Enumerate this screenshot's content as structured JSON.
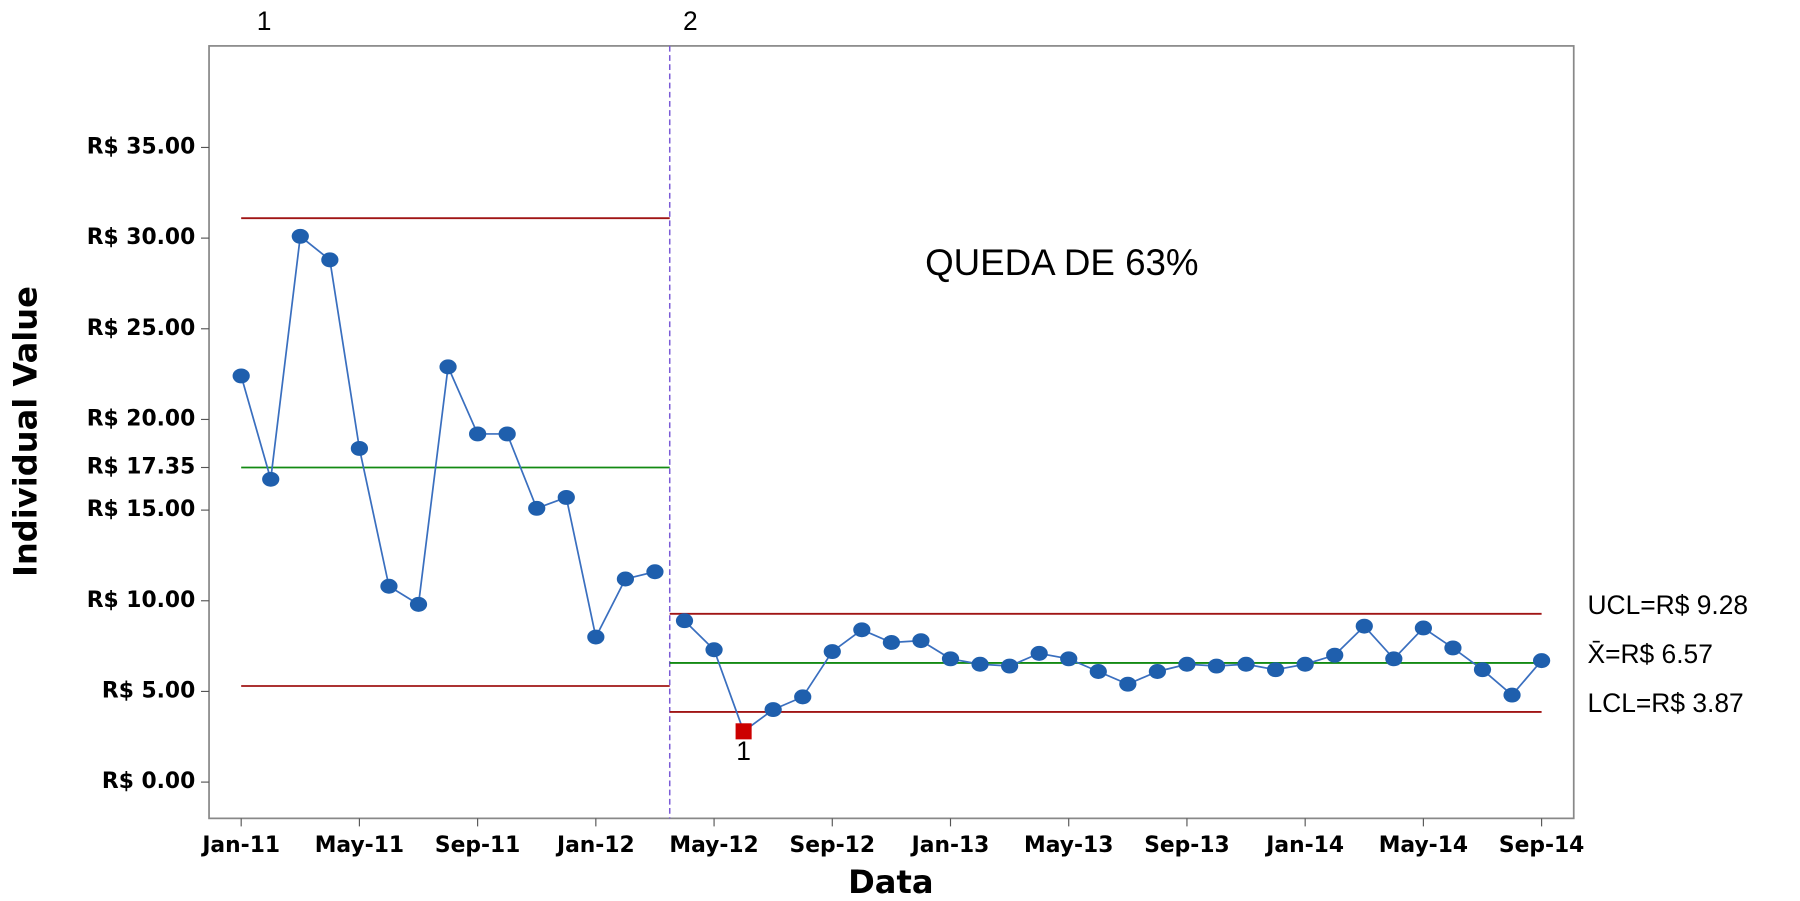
{
  "chart_data": {
    "type": "control",
    "annotation": "QUEDA DE 63%",
    "x_label": "Data",
    "y_label": "Individual Value",
    "categories": [
      "Jan-11",
      null,
      null,
      null,
      "May-11",
      null,
      null,
      null,
      "Sep-11",
      null,
      null,
      null,
      "Jan-12",
      null,
      null,
      null,
      "May-12",
      null,
      null,
      null,
      "Sep-12",
      null,
      null,
      null,
      "Jan-13",
      null,
      null,
      null,
      "May-13",
      null,
      null,
      null,
      "Sep-13",
      null,
      null,
      null,
      "Jan-14",
      null,
      null,
      null,
      "May-14",
      null,
      null,
      null,
      "Sep-14"
    ],
    "ylim": [
      -2,
      40.6
    ],
    "yticks": [
      {
        "value": 0,
        "label": "R$ 0.00"
      },
      {
        "value": 5,
        "label": "R$ 5.00"
      },
      {
        "value": 10,
        "label": "R$ 10.00"
      },
      {
        "value": 15,
        "label": "R$ 15.00"
      },
      {
        "value": 17.35,
        "label": "R$ 17.35"
      },
      {
        "value": 20,
        "label": "R$ 20.00"
      },
      {
        "value": 25,
        "label": "R$ 25.00"
      },
      {
        "value": 30,
        "label": "R$ 30.00"
      },
      {
        "value": 35,
        "label": "R$ 35.00"
      }
    ],
    "point_color": "#1f5fad",
    "line_color": "#3a6fbf",
    "limit_color": "#a01515",
    "center_color": "#138a13",
    "flag_color": "#cc0000",
    "stages": [
      {
        "label": "1",
        "ucl": 31.1,
        "center": 17.35,
        "lcl": 5.3,
        "values": [
          22.4,
          16.7,
          30.1,
          28.8,
          18.4,
          10.8,
          9.8,
          22.9,
          19.2,
          19.2,
          15.1,
          15.7,
          8.0,
          11.2,
          11.6
        ],
        "flags": [
          null,
          null,
          null,
          null,
          null,
          null,
          null,
          null,
          null,
          null,
          null,
          null,
          null,
          null,
          null
        ]
      },
      {
        "label": "2",
        "ucl": 9.28,
        "center": 6.57,
        "lcl": 3.87,
        "ucl_label": "UCL=R$ 9.28",
        "center_label": "X̄=R$ 6.57",
        "lcl_label": "LCL=R$ 3.87",
        "values": [
          8.9,
          7.3,
          2.8,
          4.0,
          4.7,
          7.2,
          8.4,
          7.7,
          7.8,
          6.8,
          6.5,
          6.4,
          7.1,
          6.8,
          6.1,
          5.4,
          6.1,
          6.5,
          6.4,
          6.5,
          6.2,
          6.5,
          7.0,
          8.6,
          6.8,
          8.5,
          7.4,
          6.2,
          4.8,
          6.7
        ],
        "flags": [
          null,
          null,
          "1",
          null,
          null,
          null,
          null,
          null,
          null,
          null,
          null,
          null,
          null,
          null,
          null,
          null,
          null,
          null,
          null,
          null,
          null,
          null,
          null,
          null,
          null,
          null,
          null,
          null,
          null,
          null
        ]
      }
    ]
  }
}
